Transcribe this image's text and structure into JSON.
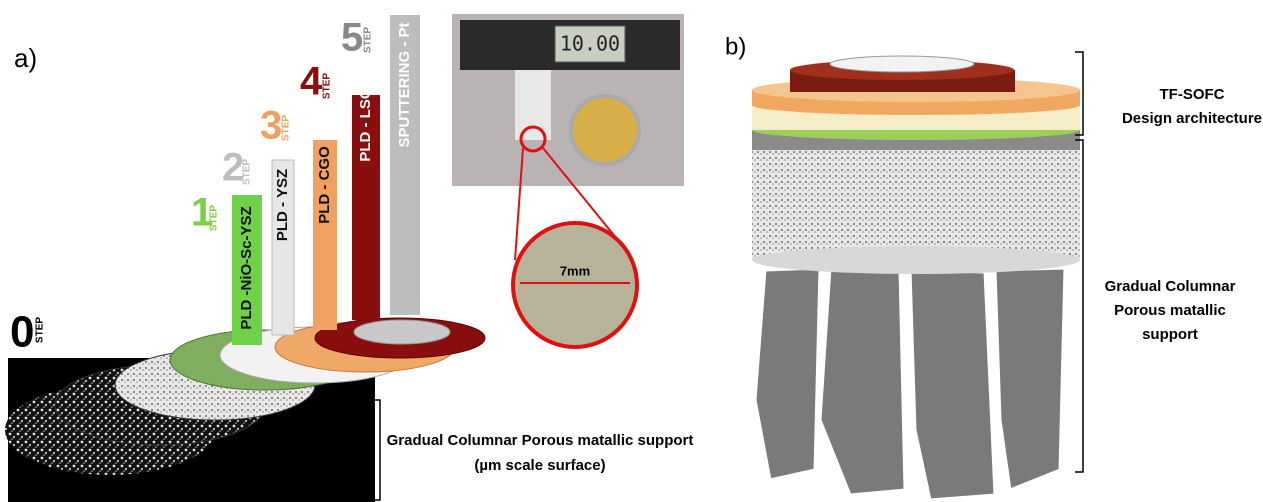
{
  "panel_a": {
    "label": "a)",
    "steps": [
      {
        "number": "0",
        "word": "STEP"
      },
      {
        "number": "1",
        "word": "STEP"
      },
      {
        "number": "2",
        "word": "STEP"
      },
      {
        "number": "3",
        "word": "STEP"
      },
      {
        "number": "4",
        "word": "STEP"
      },
      {
        "number": "5",
        "word": "STEP"
      }
    ],
    "layers": [
      "PLD -NiO-Sc-YSZ",
      "PLD - YSZ",
      "PLD - CGO",
      "PLD - LSC",
      "SPUTTERING - Pt"
    ],
    "photo": {
      "display": "10.00",
      "scale": "7mm"
    },
    "annotation": [
      "Gradual Columnar Porous matallic support",
      "(µm scale surface)"
    ]
  },
  "panel_b": {
    "label": "b)",
    "top_annotation": [
      "TF-SOFC",
      "Design architecture"
    ],
    "bottom_annotation": [
      "Gradual Columnar",
      "Porous matallic",
      "support"
    ]
  }
}
